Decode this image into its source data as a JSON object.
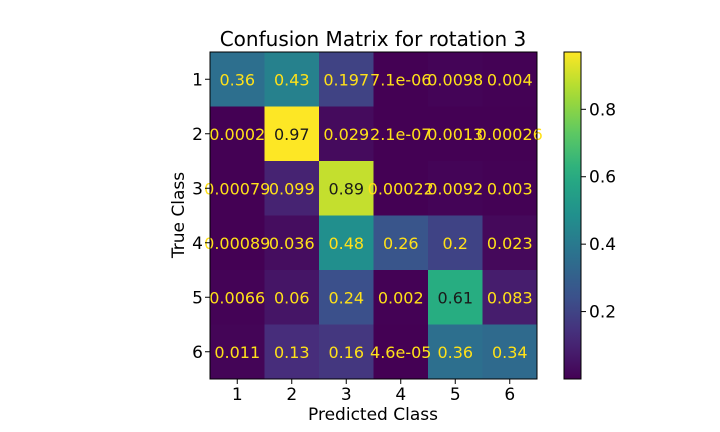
{
  "chart_data": {
    "type": "heatmap",
    "title": "Confusion Matrix for rotation 3",
    "xlabel": "Predicted Class",
    "ylabel": "True Class",
    "x_categories": [
      "1",
      "2",
      "3",
      "4",
      "5",
      "6"
    ],
    "y_categories": [
      "1",
      "2",
      "3",
      "4",
      "5",
      "6"
    ],
    "values": [
      [
        0.36,
        0.43,
        0.197,
        7.1e-06,
        0.0098,
        0.004
      ],
      [
        0.0002,
        0.97,
        0.029,
        2.1e-07,
        0.0013,
        0.00026
      ],
      [
        0.00079,
        0.099,
        0.89,
        0.00022,
        0.0092,
        0.003
      ],
      [
        0.00089,
        0.036,
        0.48,
        0.26,
        0.2,
        0.023
      ],
      [
        0.0066,
        0.06,
        0.24,
        0.002,
        0.61,
        0.083
      ],
      [
        0.011,
        0.13,
        0.16,
        4.6e-05,
        0.36,
        0.34
      ]
    ],
    "cell_labels": [
      [
        "0.36",
        "0.43",
        "0.197",
        "7.1e-06",
        "0.0098",
        "0.004"
      ],
      [
        "0.0002",
        "0.97",
        "0.029",
        "2.1e-07",
        "0.0013",
        "0.00026"
      ],
      [
        "0.00079",
        "0.099",
        "0.89",
        "0.00022",
        "0.0092",
        "0.003"
      ],
      [
        "0.00089",
        "0.036",
        "0.48",
        "0.26",
        "0.2",
        "0.023"
      ],
      [
        "0.0066",
        "0.06",
        "0.24",
        "0.002",
        "0.61",
        "0.083"
      ],
      [
        "0.011",
        "0.13",
        "0.16",
        "4.6e-05",
        "0.36",
        "0.34"
      ]
    ],
    "colormap": "viridis",
    "color_range": [
      0,
      0.97
    ],
    "colorbar_ticks": [
      "0.2",
      "0.4",
      "0.6",
      "0.8"
    ],
    "colorbar_tick_values": [
      0.2,
      0.4,
      0.6,
      0.8
    ],
    "label_colors": {
      "on_dark": "#ffe119",
      "on_light": "#1a1a1a"
    }
  }
}
